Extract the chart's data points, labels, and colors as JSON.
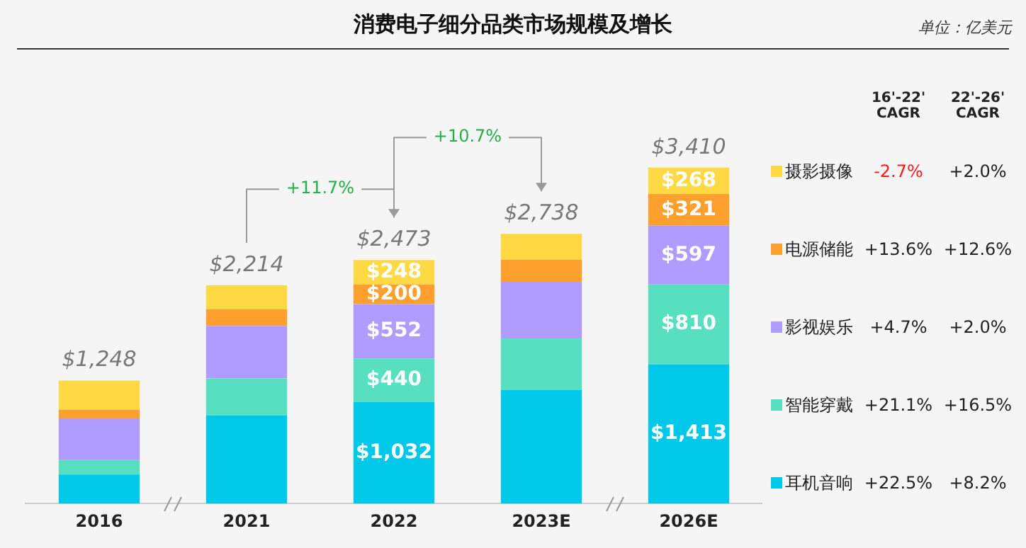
{
  "chart_data": {
    "type": "bar",
    "title": "消费电子细分品类市场规模及增长",
    "stacked": true,
    "legend": "right",
    "tick_labels": "x",
    "grid": false,
    "categories": [
      "2016",
      "2021",
      "2022",
      "2023E",
      "2026E"
    ],
    "series": [
      {
        "name": "耳机音响",
        "color": "#00c8e8",
        "values": [
          294,
          897,
          1032,
          1155,
          1413
        ],
        "value_labels": [
          null,
          null,
          "$1,032",
          null,
          "$1,413"
        ]
      },
      {
        "name": "智能穿戴",
        "color": "#57e0bf",
        "values": [
          147,
          373,
          440,
          520,
          810
        ],
        "value_labels": [
          null,
          null,
          "$440",
          null,
          "$810"
        ]
      },
      {
        "name": "影视娱乐",
        "color": "#b09bff",
        "values": [
          423,
          534,
          552,
          575,
          597
        ],
        "value_labels": [
          null,
          null,
          "$552",
          null,
          "$597"
        ]
      },
      {
        "name": "电源储能",
        "color": "#ff9f2e",
        "values": [
          87,
          166,
          200,
          225,
          321
        ],
        "value_labels": [
          null,
          null,
          "$200",
          null,
          "$321"
        ]
      },
      {
        "name": "摄影摄像",
        "color": "#ffd944",
        "values": [
          297,
          244,
          248,
          263,
          268
        ],
        "value_labels": [
          null,
          null,
          "$248",
          null,
          "$268"
        ]
      }
    ],
    "totals": [
      "$1,248",
      "$2,214",
      "$2,473",
      "$2,738",
      "$3,410"
    ],
    "annotations": [
      "单位：亿美元",
      "+11.7%",
      "+10.7%",
      "16'-22' CAGR",
      "22'-26' CAGR",
      "-2.7%",
      "+2.0%",
      "+13.6%",
      "+12.6%",
      "+4.7%",
      "+2.0%",
      "+21.1%",
      "+16.5%",
      "+22.5%",
      "+8.2%"
    ]
  }
}
